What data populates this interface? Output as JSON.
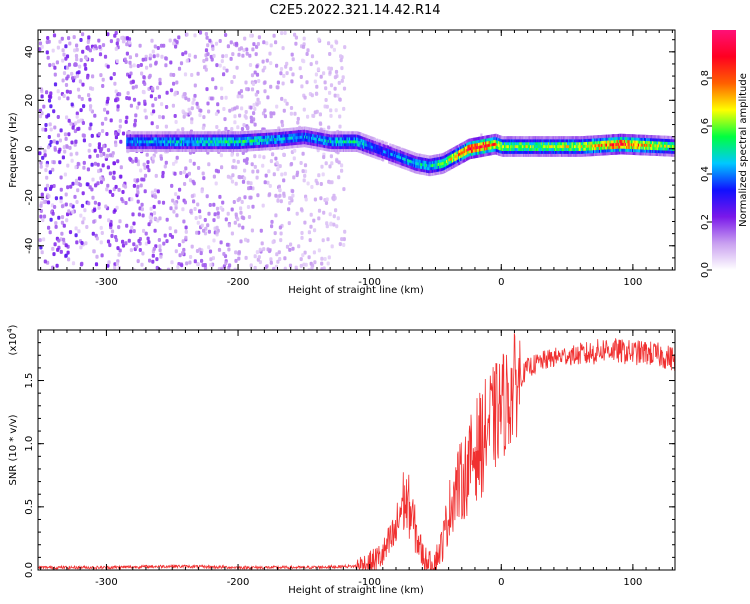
{
  "title": "C2E5.2022.321.14.42.R14",
  "chart_data": [
    {
      "type": "heatmap",
      "xlabel": "Height of straight line (km)",
      "ylabel": "Frequency (Hz)",
      "xlim": [
        -352,
        132
      ],
      "ylim": [
        -50,
        49
      ],
      "xticks": [
        -300,
        -200,
        -100,
        0,
        100
      ],
      "yticks": [
        -40,
        -20,
        0,
        20,
        40
      ],
      "colorbar": {
        "label": "Normalized spectral amplitude",
        "range": [
          0,
          1
        ],
        "ticks": [
          "0.0",
          "0.2",
          "0.4",
          "0.6",
          "0.8"
        ],
        "colors": [
          "#ffffff",
          "#c9a0f0",
          "#7a18ea",
          "#1010ff",
          "#00c8ff",
          "#00ff40",
          "#ffff00",
          "#ff6000",
          "#ff0020",
          "#ff1077"
        ]
      },
      "ridge": {
        "x": [
          -285,
          -250,
          -200,
          -170,
          -150,
          -130,
          -110,
          -95,
          -80,
          -65,
          -55,
          -45,
          -35,
          -25,
          -15,
          -5,
          0,
          30,
          60,
          90,
          132
        ],
        "freq": [
          3,
          3,
          3,
          4,
          5,
          3,
          3,
          0,
          -3,
          -6,
          -7,
          -6,
          -3,
          0,
          1,
          2,
          1,
          1,
          1,
          2,
          1
        ],
        "amplitude": [
          0.4,
          0.45,
          0.5,
          0.45,
          0.4,
          0.45,
          0.5,
          0.35,
          0.4,
          0.45,
          0.5,
          0.55,
          0.7,
          0.85,
          0.9,
          0.75,
          0.6,
          0.6,
          0.65,
          0.85,
          0.55
        ]
      },
      "noise_region_x": [
        -352,
        -120
      ]
    },
    {
      "type": "line",
      "xlabel": "Height of straight line (km)",
      "ylabel": "SNR (10 * v/v)",
      "y_multiplier": "(x10",
      "y_exponent": "4",
      "y_multiplier_close": ")",
      "xlim": [
        -352,
        132
      ],
      "ylim": [
        0,
        1.9
      ],
      "xticks": [
        -300,
        -200,
        -100,
        0,
        100
      ],
      "yticks": [
        "0.0",
        "0.5",
        "1.0",
        "1.5"
      ],
      "color": "#f03030",
      "x": [
        -352,
        -300,
        -250,
        -200,
        -150,
        -110,
        -100,
        -90,
        -80,
        -75,
        -70,
        -65,
        -60,
        -55,
        -50,
        -45,
        -40,
        -35,
        -30,
        -25,
        -20,
        -15,
        -10,
        -5,
        0,
        5,
        10,
        20,
        30,
        40,
        50,
        60,
        70,
        80,
        90,
        100,
        110,
        120,
        132
      ],
      "y": [
        0.02,
        0.02,
        0.03,
        0.02,
        0.02,
        0.03,
        0.05,
        0.12,
        0.3,
        0.55,
        0.5,
        0.3,
        0.12,
        0.05,
        0.08,
        0.2,
        0.45,
        0.65,
        0.7,
        0.8,
        0.95,
        1.0,
        1.15,
        1.2,
        1.3,
        1.35,
        1.45,
        1.6,
        1.65,
        1.68,
        1.7,
        1.7,
        1.72,
        1.75,
        1.73,
        1.72,
        1.72,
        1.7,
        1.67
      ]
    }
  ]
}
